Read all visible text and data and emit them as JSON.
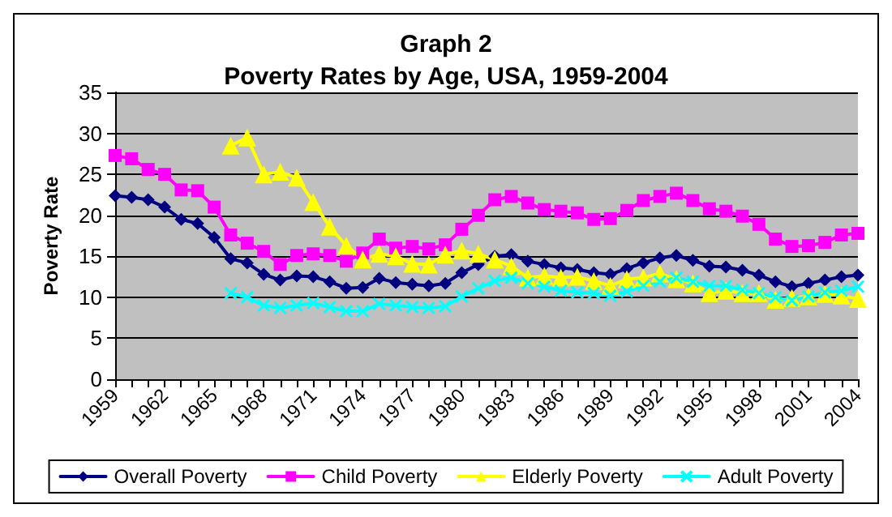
{
  "chart_data": {
    "type": "line",
    "title": "Graph 2\nPoverty Rates by Age, USA, 1959-2004",
    "ylabel": "Poverty Rate",
    "categories": [
      "1959",
      null,
      null,
      "1962",
      null,
      null,
      "1965",
      null,
      null,
      "1968",
      null,
      null,
      "1971",
      null,
      null,
      "1974",
      null,
      null,
      "1977",
      null,
      null,
      "1980",
      null,
      null,
      "1983",
      null,
      null,
      "1986",
      null,
      null,
      "1989",
      null,
      null,
      "1992",
      null,
      null,
      "1995",
      null,
      null,
      "1998",
      null,
      null,
      "2001",
      null,
      null,
      "2004"
    ],
    "series": [
      {
        "name": "Overall Poverty",
        "color": "#000080",
        "marker": "diamond",
        "values": [
          22.4,
          22.2,
          21.9,
          21.0,
          19.5,
          19.0,
          17.3,
          14.7,
          14.2,
          12.8,
          12.1,
          12.6,
          12.5,
          11.9,
          11.1,
          11.2,
          12.3,
          11.8,
          11.6,
          11.4,
          11.7,
          13.0,
          14.0,
          15.0,
          15.2,
          14.4,
          14.0,
          13.6,
          13.4,
          13.0,
          12.8,
          13.5,
          14.2,
          14.8,
          15.1,
          14.5,
          13.8,
          13.7,
          13.3,
          12.7,
          11.9,
          11.3,
          11.7,
          12.1,
          12.5,
          12.7
        ]
      },
      {
        "name": "Child Poverty",
        "color": "#ff00ff",
        "marker": "square",
        "values": [
          27.3,
          26.9,
          25.6,
          25.0,
          23.1,
          23.0,
          21.0,
          17.6,
          16.6,
          15.6,
          14.0,
          15.1,
          15.3,
          15.1,
          14.4,
          15.4,
          17.1,
          16.0,
          16.2,
          15.9,
          16.4,
          18.3,
          20.0,
          21.9,
          22.3,
          21.5,
          20.7,
          20.5,
          20.3,
          19.5,
          19.6,
          20.6,
          21.8,
          22.3,
          22.7,
          21.8,
          20.8,
          20.5,
          19.9,
          18.9,
          17.1,
          16.2,
          16.3,
          16.7,
          17.6,
          17.8
        ]
      },
      {
        "name": "Elderly Poverty",
        "color": "#ffff00",
        "marker": "triangle",
        "values": [
          null,
          null,
          null,
          null,
          null,
          null,
          null,
          28.5,
          29.5,
          25.0,
          25.3,
          24.6,
          21.6,
          18.6,
          16.3,
          14.6,
          15.3,
          15.0,
          14.1,
          14.0,
          15.2,
          15.7,
          15.3,
          14.6,
          13.8,
          12.4,
          12.6,
          12.4,
          12.5,
          12.0,
          11.4,
          12.2,
          12.4,
          12.9,
          12.2,
          11.7,
          10.5,
          10.8,
          10.5,
          10.5,
          9.7,
          9.9,
          10.1,
          10.4,
          10.2,
          9.8
        ]
      },
      {
        "name": "Adult Poverty",
        "color": "#00ffff",
        "marker": "cross",
        "values": [
          null,
          null,
          null,
          null,
          null,
          null,
          null,
          10.5,
          10.0,
          9.0,
          8.7,
          9.0,
          9.3,
          8.8,
          8.3,
          8.3,
          9.2,
          9.0,
          8.8,
          8.7,
          8.9,
          10.1,
          11.1,
          12.0,
          12.4,
          11.7,
          11.3,
          10.8,
          10.6,
          10.5,
          10.2,
          10.7,
          11.4,
          11.9,
          12.4,
          11.9,
          11.4,
          11.4,
          10.9,
          10.5,
          10.0,
          9.6,
          10.1,
          10.6,
          10.8,
          11.3
        ]
      }
    ],
    "ylim": [
      0,
      35
    ],
    "yticks": [
      0,
      5,
      10,
      15,
      20,
      25,
      30,
      35
    ],
    "grid": "y",
    "legend": "bottom"
  }
}
